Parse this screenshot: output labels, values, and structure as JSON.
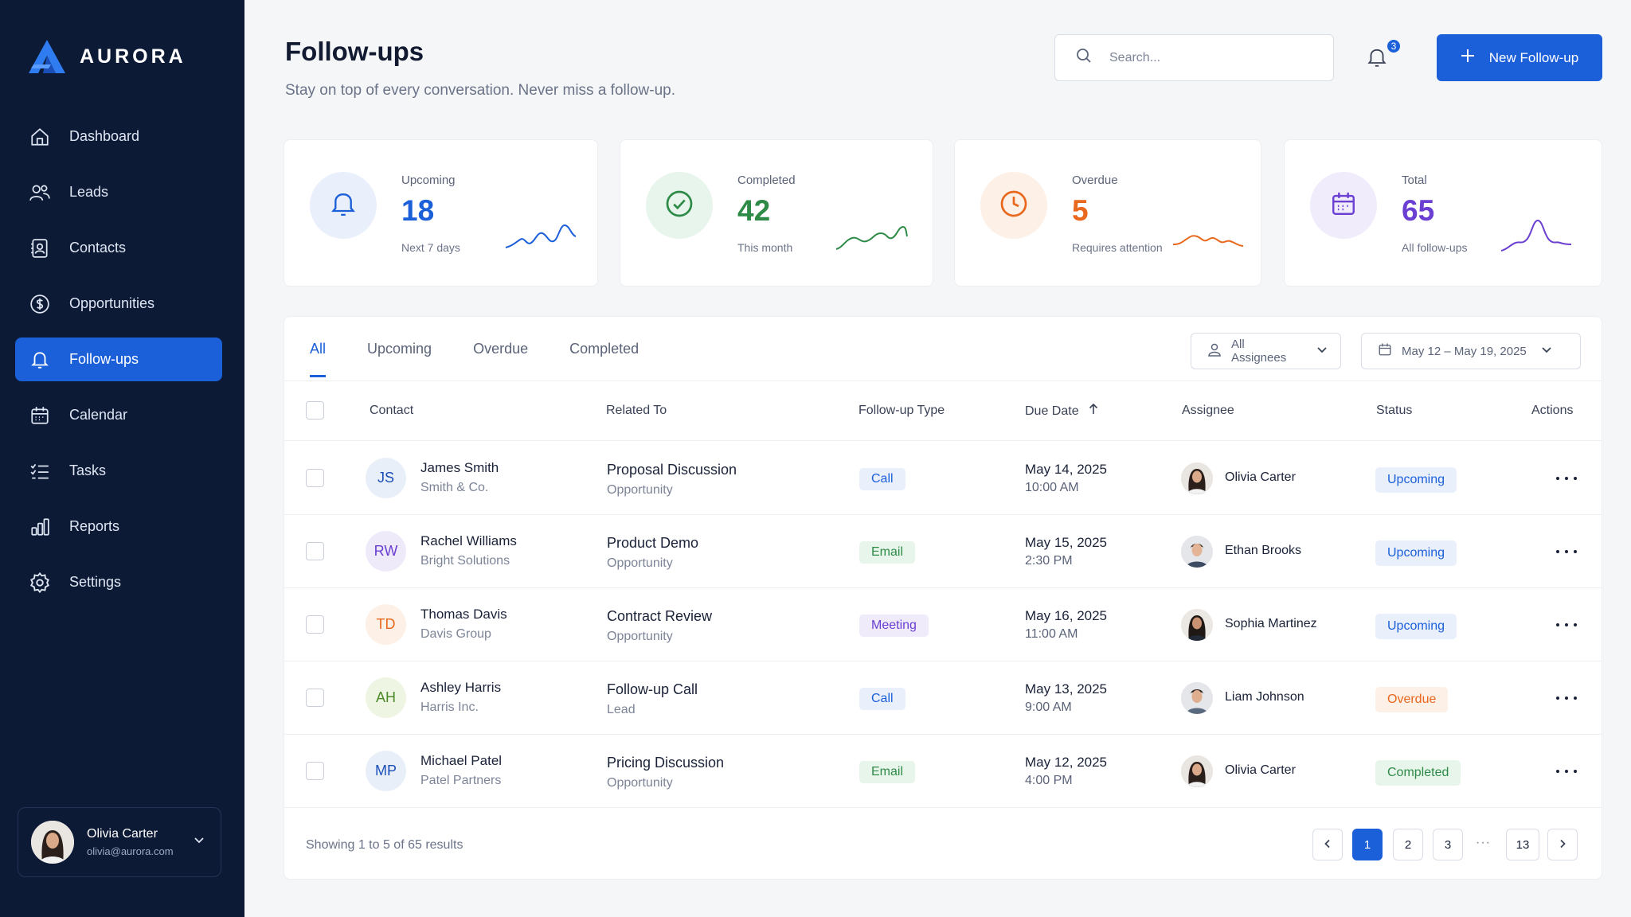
{
  "brand": {
    "name": "AURORA"
  },
  "sidebar": {
    "items": [
      {
        "label": "Dashboard",
        "icon": "home-icon"
      },
      {
        "label": "Leads",
        "icon": "users-icon"
      },
      {
        "label": "Contacts",
        "icon": "contact-card-icon"
      },
      {
        "label": "Opportunities",
        "icon": "dollar-circle-icon"
      },
      {
        "label": "Follow-ups",
        "icon": "bell-icon",
        "active": true
      },
      {
        "label": "Calendar",
        "icon": "calendar-icon"
      },
      {
        "label": "Tasks",
        "icon": "checklist-icon"
      },
      {
        "label": "Reports",
        "icon": "bar-chart-icon"
      },
      {
        "label": "Settings",
        "icon": "gear-icon"
      }
    ],
    "user": {
      "name": "Olivia Carter",
      "email": "olivia@aurora.com"
    }
  },
  "header": {
    "title": "Follow-ups",
    "subtitle": "Stay on top of every conversation. Never miss a follow-up.",
    "search_placeholder": "Search...",
    "notification_count": "3",
    "new_button_label": "New Follow-up"
  },
  "stats": [
    {
      "label": "Upcoming",
      "value": "18",
      "sub": "Next 7 days",
      "color": "#1b5fd9",
      "bg": "#eaf0fb",
      "icon": "bell-icon"
    },
    {
      "label": "Completed",
      "value": "42",
      "sub": "This month",
      "color": "#2e8b47",
      "bg": "#e8f5ec",
      "icon": "check-circle-icon"
    },
    {
      "label": "Overdue",
      "value": "5",
      "sub": "Requires attention",
      "color": "#e8681e",
      "bg": "#fdf0e6",
      "icon": "clock-icon"
    },
    {
      "label": "Total",
      "value": "65",
      "sub": "All follow-ups",
      "color": "#6a3fd1",
      "bg": "#f0ecfb",
      "icon": "calendar-icon"
    }
  ],
  "tabs": [
    "All",
    "Upcoming",
    "Overdue",
    "Completed"
  ],
  "filters": {
    "assignees": "All Assignees",
    "date_range": "May 12 – May 19, 2025"
  },
  "table": {
    "columns": [
      "Contact",
      "Related To",
      "Follow-up Type",
      "Due Date",
      "Assignee",
      "Status",
      "Actions"
    ],
    "rows": [
      {
        "initials": "JS",
        "name": "James Smith",
        "company": "Smith & Co.",
        "related": "Proposal Discussion",
        "related_type": "Opportunity",
        "type": "Call",
        "date": "May 14, 2025",
        "time": "10:00 AM",
        "assignee": "Olivia Carter",
        "status": "Upcoming"
      },
      {
        "initials": "RW",
        "name": "Rachel Williams",
        "company": "Bright Solutions",
        "related": "Product Demo",
        "related_type": "Opportunity",
        "type": "Email",
        "date": "May 15, 2025",
        "time": "2:30 PM",
        "assignee": "Ethan Brooks",
        "status": "Upcoming"
      },
      {
        "initials": "TD",
        "name": "Thomas Davis",
        "company": "Davis Group",
        "related": "Contract Review",
        "related_type": "Opportunity",
        "type": "Meeting",
        "date": "May 16, 2025",
        "time": "11:00 AM",
        "assignee": "Sophia Martinez",
        "status": "Upcoming"
      },
      {
        "initials": "AH",
        "name": "Ashley Harris",
        "company": "Harris Inc.",
        "related": "Follow-up Call",
        "related_type": "Lead",
        "type": "Call",
        "date": "May 13, 2025",
        "time": "9:00 AM",
        "assignee": "Liam Johnson",
        "status": "Overdue"
      },
      {
        "initials": "MP",
        "name": "Michael Patel",
        "company": "Patel Partners",
        "related": "Pricing Discussion",
        "related_type": "Opportunity",
        "type": "Email",
        "date": "May 12, 2025",
        "time": "4:00 PM",
        "assignee": "Olivia Carter",
        "status": "Completed"
      }
    ]
  },
  "footer": {
    "showing": "Showing 1 to 5 of 65 results",
    "pages": [
      "1",
      "2",
      "3",
      "13"
    ],
    "ellipsis": "···"
  }
}
